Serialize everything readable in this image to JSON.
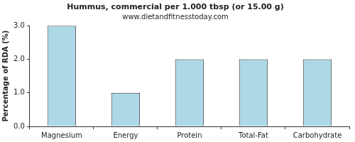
{
  "chart_data": {
    "type": "bar",
    "title": "Hummus, commercial per 1.000 tbsp (or 15.00 g)",
    "subtitle": "www.dietandfitnesstoday.com",
    "y_label": "Percentage of RDA (%)",
    "categories": [
      "Magnesium",
      "Energy",
      "Protein",
      "Total-Fat",
      "Carbohydrate"
    ],
    "values": [
      3,
      1,
      2,
      2,
      2
    ],
    "color": "#add8e6",
    "ylim": [
      0,
      3
    ],
    "yticks": [
      {
        "value": 0,
        "label": "0.0"
      },
      {
        "value": 1,
        "label": "1.0"
      },
      {
        "value": 2,
        "label": "2.0"
      },
      {
        "value": 3,
        "label": "3.0"
      }
    ],
    "grid": false
  }
}
